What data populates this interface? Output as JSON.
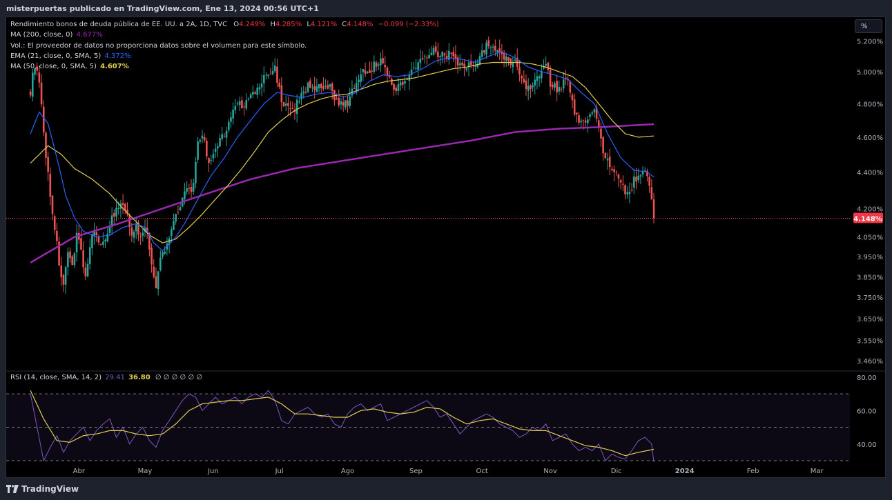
{
  "header": {
    "publisher": "misterpuertas publicado en TradingView.com, Ene 13, 2024 00:56 UTC+1"
  },
  "legend": {
    "symbol": "Rendimiento bonos de deuda pública de EE. UU. a 2A, 1D, TVC",
    "o_label": "O",
    "o_value": "4.249%",
    "h_label": "H",
    "h_value": "4.285%",
    "l_label": "L",
    "l_value": "4.121%",
    "c_label": "C",
    "c_value": "4.148%",
    "change": "−0.099 (−2.33%)",
    "ma200_label": "MA (200, close, 0)",
    "ma200_value": "4.677%",
    "vol_note": "Vol.: El proveedor de datos no proporciona datos sobre el volumen para este símbolo.",
    "ema21_label": "EMA (21, close, 0, SMA, 5)",
    "ema21_value": "4.372%",
    "ma50_label": "MA (50, close, 0, SMA, 5)",
    "ma50_value": "4.607%",
    "rsi_label": "RSI (14, close, SMA, 14, 2)",
    "rsi_value": "29.41",
    "rsi_ma_value": "36.80",
    "rsi_extras": "∅ ∅ ∅ ∅ ∅ ∅"
  },
  "scale_button": "%",
  "last_price_tag": "4.148%",
  "footer": {
    "brand": "TradingView"
  },
  "colors": {
    "up": "#26a69a",
    "down": "#ef5350",
    "ema21": "#2962ff",
    "ma50": "#e2cf52",
    "ma200": "#9c27b0",
    "rsi": "#7e57c2",
    "rsi_ma": "#e2cf52",
    "tag": "#f23645",
    "bg": "#000000"
  },
  "chart_data": {
    "type": "candlestick",
    "title": "Rendimiento bonos de deuda pública de EE. UU. a 2A, 1D, TVC",
    "price_axis": {
      "ticks": [
        "5.200%",
        "5.000%",
        "4.800%",
        "4.600%",
        "4.400%",
        "4.200%",
        "4.050%",
        "3.950%",
        "3.850%",
        "3.750%",
        "3.650%",
        "3.550%",
        "3.460%"
      ],
      "tick_values": [
        5.2,
        5.0,
        4.8,
        4.6,
        4.4,
        4.2,
        4.05,
        3.95,
        3.85,
        3.75,
        3.65,
        3.55,
        3.46
      ],
      "scale": "log",
      "range": [
        3.42,
        5.36
      ]
    },
    "time_axis": {
      "ticks": [
        "Abr",
        "May",
        "Jun",
        "Jul",
        "Ago",
        "Sep",
        "Oct",
        "Nov",
        "Dic",
        "2024",
        "Feb",
        "Mar"
      ],
      "tick_days": [
        22,
        52,
        83,
        113,
        144,
        175,
        205,
        236,
        266,
        297,
        328,
        357
      ],
      "range_days": [
        -11,
        372
      ]
    },
    "series_close_anchors": [
      [
        0,
        4.88
      ],
      [
        2,
        5.05
      ],
      [
        4,
        4.92
      ],
      [
        6,
        4.62
      ],
      [
        9,
        4.27
      ],
      [
        11,
        4.1
      ],
      [
        13,
        3.92
      ],
      [
        15,
        3.8
      ],
      [
        17,
        3.95
      ],
      [
        19,
        3.9
      ],
      [
        21,
        4.08
      ],
      [
        23,
        3.98
      ],
      [
        25,
        3.85
      ],
      [
        28,
        4.05
      ],
      [
        30,
        4.08
      ],
      [
        32,
        4.0
      ],
      [
        34,
        4.05
      ],
      [
        37,
        4.15
      ],
      [
        40,
        4.2
      ],
      [
        42,
        4.22
      ],
      [
        44,
        4.15
      ],
      [
        46,
        4.08
      ],
      [
        48,
        4.1
      ],
      [
        50,
        4.05
      ],
      [
        52,
        4.12
      ],
      [
        55,
        3.92
      ],
      [
        57,
        3.78
      ],
      [
        59,
        3.95
      ],
      [
        61,
        3.98
      ],
      [
        64,
        4.1
      ],
      [
        67,
        4.2
      ],
      [
        70,
        4.28
      ],
      [
        74,
        4.32
      ],
      [
        76,
        4.55
      ],
      [
        78,
        4.62
      ],
      [
        80,
        4.5
      ],
      [
        82,
        4.45
      ],
      [
        85,
        4.55
      ],
      [
        88,
        4.62
      ],
      [
        91,
        4.72
      ],
      [
        94,
        4.82
      ],
      [
        97,
        4.78
      ],
      [
        100,
        4.85
      ],
      [
        103,
        4.88
      ],
      [
        106,
        4.96
      ],
      [
        108,
        4.98
      ],
      [
        111,
        5.02
      ],
      [
        112,
        4.96
      ],
      [
        114,
        4.82
      ],
      [
        116,
        4.78
      ],
      [
        119,
        4.75
      ],
      [
        121,
        4.8
      ],
      [
        124,
        4.88
      ],
      [
        127,
        4.92
      ],
      [
        130,
        4.9
      ],
      [
        133,
        4.88
      ],
      [
        136,
        4.9
      ],
      [
        139,
        4.82
      ],
      [
        142,
        4.78
      ],
      [
        145,
        4.83
      ],
      [
        148,
        4.95
      ],
      [
        151,
        5.0
      ],
      [
        154,
        5.02
      ],
      [
        157,
        5.05
      ],
      [
        160,
        5.08
      ],
      [
        162,
        4.98
      ],
      [
        164,
        4.92
      ],
      [
        167,
        4.9
      ],
      [
        170,
        4.96
      ],
      [
        173,
        5.0
      ],
      [
        176,
        5.05
      ],
      [
        179,
        5.1
      ],
      [
        182,
        5.15
      ],
      [
        185,
        5.12
      ],
      [
        188,
        5.1
      ],
      [
        191,
        5.13
      ],
      [
        194,
        5.06
      ],
      [
        197,
        5.02
      ],
      [
        200,
        5.04
      ],
      [
        203,
        5.08
      ],
      [
        206,
        5.15
      ],
      [
        208,
        5.18
      ],
      [
        211,
        5.12
      ],
      [
        214,
        5.1
      ],
      [
        217,
        5.08
      ],
      [
        220,
        5.06
      ],
      [
        223,
        4.96
      ],
      [
        226,
        4.9
      ],
      [
        229,
        4.95
      ],
      [
        232,
        5.02
      ],
      [
        234,
        5.05
      ],
      [
        236,
        4.93
      ],
      [
        239,
        4.9
      ],
      [
        241,
        4.92
      ],
      [
        244,
        4.96
      ],
      [
        246,
        4.8
      ],
      [
        248,
        4.72
      ],
      [
        250,
        4.68
      ],
      [
        252,
        4.7
      ],
      [
        254,
        4.74
      ],
      [
        256,
        4.75
      ],
      [
        258,
        4.66
      ],
      [
        260,
        4.5
      ],
      [
        262,
        4.45
      ],
      [
        264,
        4.42
      ],
      [
        266,
        4.38
      ],
      [
        268,
        4.33
      ],
      [
        270,
        4.3
      ],
      [
        272,
        4.28
      ],
      [
        274,
        4.35
      ],
      [
        276,
        4.38
      ],
      [
        278,
        4.42
      ],
      [
        280,
        4.36
      ],
      [
        282,
        4.249
      ],
      [
        283,
        4.148
      ]
    ],
    "ema21_anchors": [
      [
        0,
        4.62
      ],
      [
        4,
        4.75
      ],
      [
        8,
        4.68
      ],
      [
        12,
        4.48
      ],
      [
        16,
        4.27
      ],
      [
        20,
        4.15
      ],
      [
        24,
        4.08
      ],
      [
        30,
        4.05
      ],
      [
        36,
        4.06
      ],
      [
        42,
        4.1
      ],
      [
        48,
        4.12
      ],
      [
        52,
        4.1
      ],
      [
        56,
        4.02
      ],
      [
        60,
        3.98
      ],
      [
        66,
        4.05
      ],
      [
        70,
        4.12
      ],
      [
        76,
        4.25
      ],
      [
        82,
        4.38
      ],
      [
        88,
        4.48
      ],
      [
        94,
        4.6
      ],
      [
        100,
        4.7
      ],
      [
        106,
        4.8
      ],
      [
        112,
        4.87
      ],
      [
        118,
        4.85
      ],
      [
        124,
        4.84
      ],
      [
        130,
        4.86
      ],
      [
        136,
        4.87
      ],
      [
        142,
        4.84
      ],
      [
        148,
        4.87
      ],
      [
        154,
        4.94
      ],
      [
        160,
        4.98
      ],
      [
        166,
        4.97
      ],
      [
        172,
        4.98
      ],
      [
        178,
        5.02
      ],
      [
        184,
        5.07
      ],
      [
        190,
        5.09
      ],
      [
        196,
        5.08
      ],
      [
        202,
        5.06
      ],
      [
        208,
        5.1
      ],
      [
        214,
        5.13
      ],
      [
        220,
        5.09
      ],
      [
        226,
        5.03
      ],
      [
        232,
        5.0
      ],
      [
        238,
        4.98
      ],
      [
        244,
        4.95
      ],
      [
        250,
        4.87
      ],
      [
        256,
        4.8
      ],
      [
        262,
        4.62
      ],
      [
        268,
        4.48
      ],
      [
        274,
        4.41
      ],
      [
        280,
        4.4
      ],
      [
        283,
        4.372
      ]
    ],
    "ma50_anchors": [
      [
        0,
        4.45
      ],
      [
        8,
        4.55
      ],
      [
        14,
        4.5
      ],
      [
        20,
        4.42
      ],
      [
        28,
        4.36
      ],
      [
        36,
        4.28
      ],
      [
        42,
        4.2
      ],
      [
        48,
        4.13
      ],
      [
        54,
        4.06
      ],
      [
        60,
        4.02
      ],
      [
        66,
        4.04
      ],
      [
        72,
        4.1
      ],
      [
        78,
        4.17
      ],
      [
        84,
        4.25
      ],
      [
        90,
        4.33
      ],
      [
        96,
        4.42
      ],
      [
        102,
        4.52
      ],
      [
        108,
        4.63
      ],
      [
        114,
        4.7
      ],
      [
        120,
        4.76
      ],
      [
        126,
        4.8
      ],
      [
        132,
        4.83
      ],
      [
        138,
        4.85
      ],
      [
        144,
        4.86
      ],
      [
        150,
        4.89
      ],
      [
        156,
        4.92
      ],
      [
        162,
        4.94
      ],
      [
        168,
        4.95
      ],
      [
        174,
        4.96
      ],
      [
        180,
        4.98
      ],
      [
        186,
        5.0
      ],
      [
        192,
        5.02
      ],
      [
        198,
        5.03
      ],
      [
        204,
        5.05
      ],
      [
        210,
        5.06
      ],
      [
        216,
        5.06
      ],
      [
        222,
        5.06
      ],
      [
        228,
        5.05
      ],
      [
        234,
        5.03
      ],
      [
        240,
        5.0
      ],
      [
        246,
        4.97
      ],
      [
        252,
        4.9
      ],
      [
        258,
        4.8
      ],
      [
        264,
        4.7
      ],
      [
        270,
        4.62
      ],
      [
        276,
        4.6
      ],
      [
        283,
        4.607
      ]
    ],
    "ma200_anchors": [
      [
        0,
        3.92
      ],
      [
        20,
        4.05
      ],
      [
        40,
        4.12
      ],
      [
        60,
        4.2
      ],
      [
        80,
        4.28
      ],
      [
        100,
        4.36
      ],
      [
        120,
        4.42
      ],
      [
        140,
        4.46
      ],
      [
        160,
        4.5
      ],
      [
        180,
        4.54
      ],
      [
        200,
        4.58
      ],
      [
        220,
        4.63
      ],
      [
        240,
        4.65
      ],
      [
        260,
        4.66
      ],
      [
        283,
        4.677
      ]
    ],
    "rsi_axis": {
      "ticks": [
        "80.00",
        "60.00",
        "40.00"
      ],
      "tick_values": [
        80,
        60,
        40
      ],
      "range": [
        30,
        82
      ],
      "bands": [
        70,
        50,
        30
      ]
    },
    "rsi_anchors": [
      [
        0,
        70
      ],
      [
        3,
        50
      ],
      [
        6,
        30
      ],
      [
        9,
        38
      ],
      [
        12,
        45
      ],
      [
        15,
        35
      ],
      [
        18,
        42
      ],
      [
        21,
        46
      ],
      [
        24,
        50
      ],
      [
        27,
        42
      ],
      [
        30,
        48
      ],
      [
        33,
        52
      ],
      [
        36,
        55
      ],
      [
        39,
        44
      ],
      [
        42,
        50
      ],
      [
        45,
        40
      ],
      [
        48,
        46
      ],
      [
        51,
        50
      ],
      [
        54,
        42
      ],
      [
        57,
        38
      ],
      [
        60,
        48
      ],
      [
        63,
        54
      ],
      [
        66,
        60
      ],
      [
        69,
        66
      ],
      [
        72,
        70
      ],
      [
        75,
        68
      ],
      [
        78,
        60
      ],
      [
        81,
        64
      ],
      [
        84,
        68
      ],
      [
        87,
        64
      ],
      [
        90,
        66
      ],
      [
        93,
        68
      ],
      [
        96,
        64
      ],
      [
        99,
        68
      ],
      [
        102,
        70
      ],
      [
        105,
        68
      ],
      [
        108,
        72
      ],
      [
        111,
        66
      ],
      [
        114,
        54
      ],
      [
        117,
        52
      ],
      [
        120,
        58
      ],
      [
        123,
        60
      ],
      [
        126,
        62
      ],
      [
        129,
        58
      ],
      [
        132,
        56
      ],
      [
        135,
        58
      ],
      [
        138,
        52
      ],
      [
        141,
        50
      ],
      [
        144,
        58
      ],
      [
        147,
        62
      ],
      [
        150,
        64
      ],
      [
        153,
        60
      ],
      [
        156,
        62
      ],
      [
        159,
        64
      ],
      [
        162,
        54
      ],
      [
        165,
        56
      ],
      [
        168,
        58
      ],
      [
        171,
        60
      ],
      [
        174,
        62
      ],
      [
        177,
        64
      ],
      [
        180,
        66
      ],
      [
        183,
        62
      ],
      [
        186,
        56
      ],
      [
        189,
        58
      ],
      [
        192,
        52
      ],
      [
        195,
        46
      ],
      [
        198,
        50
      ],
      [
        201,
        54
      ],
      [
        204,
        56
      ],
      [
        207,
        58
      ],
      [
        210,
        56
      ],
      [
        213,
        52
      ],
      [
        216,
        50
      ],
      [
        219,
        48
      ],
      [
        222,
        44
      ],
      [
        225,
        46
      ],
      [
        228,
        50
      ],
      [
        231,
        48
      ],
      [
        234,
        52
      ],
      [
        237,
        42
      ],
      [
        240,
        44
      ],
      [
        243,
        46
      ],
      [
        246,
        40
      ],
      [
        249,
        36
      ],
      [
        252,
        38
      ],
      [
        255,
        36
      ],
      [
        258,
        40
      ],
      [
        261,
        30
      ],
      [
        264,
        34
      ],
      [
        267,
        32
      ],
      [
        270,
        31
      ],
      [
        273,
        36
      ],
      [
        276,
        42
      ],
      [
        279,
        44
      ],
      [
        282,
        40
      ],
      [
        283,
        29.41
      ]
    ],
    "rsi_ma_anchors": [
      [
        0,
        72
      ],
      [
        6,
        55
      ],
      [
        12,
        42
      ],
      [
        18,
        41
      ],
      [
        24,
        45
      ],
      [
        30,
        46
      ],
      [
        36,
        48
      ],
      [
        42,
        48
      ],
      [
        48,
        46
      ],
      [
        54,
        45
      ],
      [
        60,
        46
      ],
      [
        66,
        52
      ],
      [
        72,
        60
      ],
      [
        78,
        64
      ],
      [
        84,
        65
      ],
      [
        90,
        66
      ],
      [
        96,
        66
      ],
      [
        102,
        67
      ],
      [
        108,
        68
      ],
      [
        114,
        64
      ],
      [
        120,
        58
      ],
      [
        126,
        58
      ],
      [
        132,
        57
      ],
      [
        138,
        56
      ],
      [
        144,
        56
      ],
      [
        150,
        60
      ],
      [
        156,
        61
      ],
      [
        162,
        59
      ],
      [
        168,
        58
      ],
      [
        174,
        59
      ],
      [
        180,
        62
      ],
      [
        186,
        61
      ],
      [
        192,
        56
      ],
      [
        198,
        52
      ],
      [
        204,
        54
      ],
      [
        210,
        55
      ],
      [
        216,
        52
      ],
      [
        222,
        49
      ],
      [
        228,
        48
      ],
      [
        234,
        48
      ],
      [
        240,
        45
      ],
      [
        246,
        42
      ],
      [
        252,
        39
      ],
      [
        258,
        38
      ],
      [
        264,
        36
      ],
      [
        270,
        33
      ],
      [
        276,
        35
      ],
      [
        283,
        36.8
      ]
    ]
  }
}
